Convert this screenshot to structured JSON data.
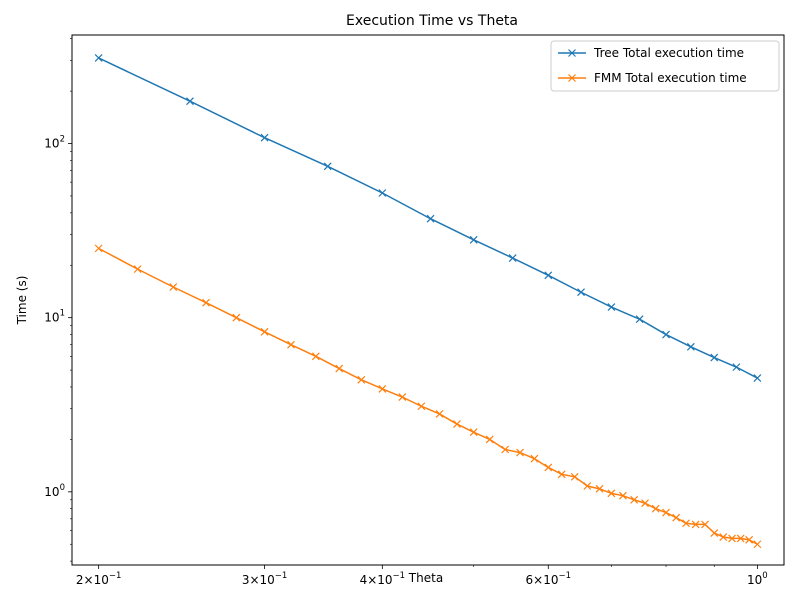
{
  "chart_data": {
    "type": "line",
    "title": "Execution Time vs Theta",
    "xlabel": "Theta",
    "ylabel": "Time (s)",
    "xscale": "log",
    "yscale": "log",
    "xlim": [
      0.1874,
      1.0672
    ],
    "ylim": [
      0.38,
      420
    ],
    "grid": false,
    "legend_position": "top-right",
    "x_ticks": [
      {
        "value": 0.2,
        "base": "2×10",
        "exp": "−1"
      },
      {
        "value": 0.3,
        "base": "3×10",
        "exp": "−1"
      },
      {
        "value": 0.4,
        "base": "4×10",
        "exp": "−1"
      },
      {
        "value": 0.6,
        "base": "6×10",
        "exp": "−1"
      },
      {
        "value": 1.0,
        "base": "10",
        "exp": "0"
      }
    ],
    "y_ticks": [
      {
        "value": 1,
        "base": "10",
        "exp": "0"
      },
      {
        "value": 10,
        "base": "10",
        "exp": "1"
      },
      {
        "value": 100,
        "base": "10",
        "exp": "2"
      }
    ],
    "series": [
      {
        "name": "Tree Total execution time",
        "color": "#1f77b4",
        "x": [
          0.2,
          0.25,
          0.3,
          0.35,
          0.4,
          0.45,
          0.5,
          0.55,
          0.6,
          0.65,
          0.7,
          0.75,
          0.8,
          0.85,
          0.9,
          0.95,
          1.0
        ],
        "y": [
          310,
          175,
          108,
          74,
          52,
          37,
          28,
          22,
          17.5,
          14,
          11.5,
          9.8,
          8.0,
          6.8,
          5.9,
          5.2,
          4.5
        ]
      },
      {
        "name": "FMM Total execution time",
        "color": "#ff7f0e",
        "x": [
          0.2,
          0.22,
          0.24,
          0.26,
          0.28,
          0.3,
          0.32,
          0.34,
          0.36,
          0.38,
          0.4,
          0.42,
          0.44,
          0.46,
          0.48,
          0.5,
          0.52,
          0.54,
          0.56,
          0.58,
          0.6,
          0.62,
          0.64,
          0.66,
          0.68,
          0.7,
          0.72,
          0.74,
          0.76,
          0.78,
          0.8,
          0.82,
          0.84,
          0.86,
          0.88,
          0.9,
          0.92,
          0.94,
          0.96,
          0.98,
          1.0
        ],
        "y": [
          25,
          19,
          15,
          12.2,
          10,
          8.3,
          7.0,
          6.0,
          5.1,
          4.4,
          3.9,
          3.5,
          3.1,
          2.8,
          2.45,
          2.2,
          2.0,
          1.75,
          1.68,
          1.55,
          1.38,
          1.26,
          1.22,
          1.08,
          1.04,
          0.98,
          0.95,
          0.9,
          0.86,
          0.8,
          0.76,
          0.71,
          0.66,
          0.65,
          0.65,
          0.58,
          0.55,
          0.54,
          0.54,
          0.53,
          0.5
        ]
      }
    ]
  }
}
